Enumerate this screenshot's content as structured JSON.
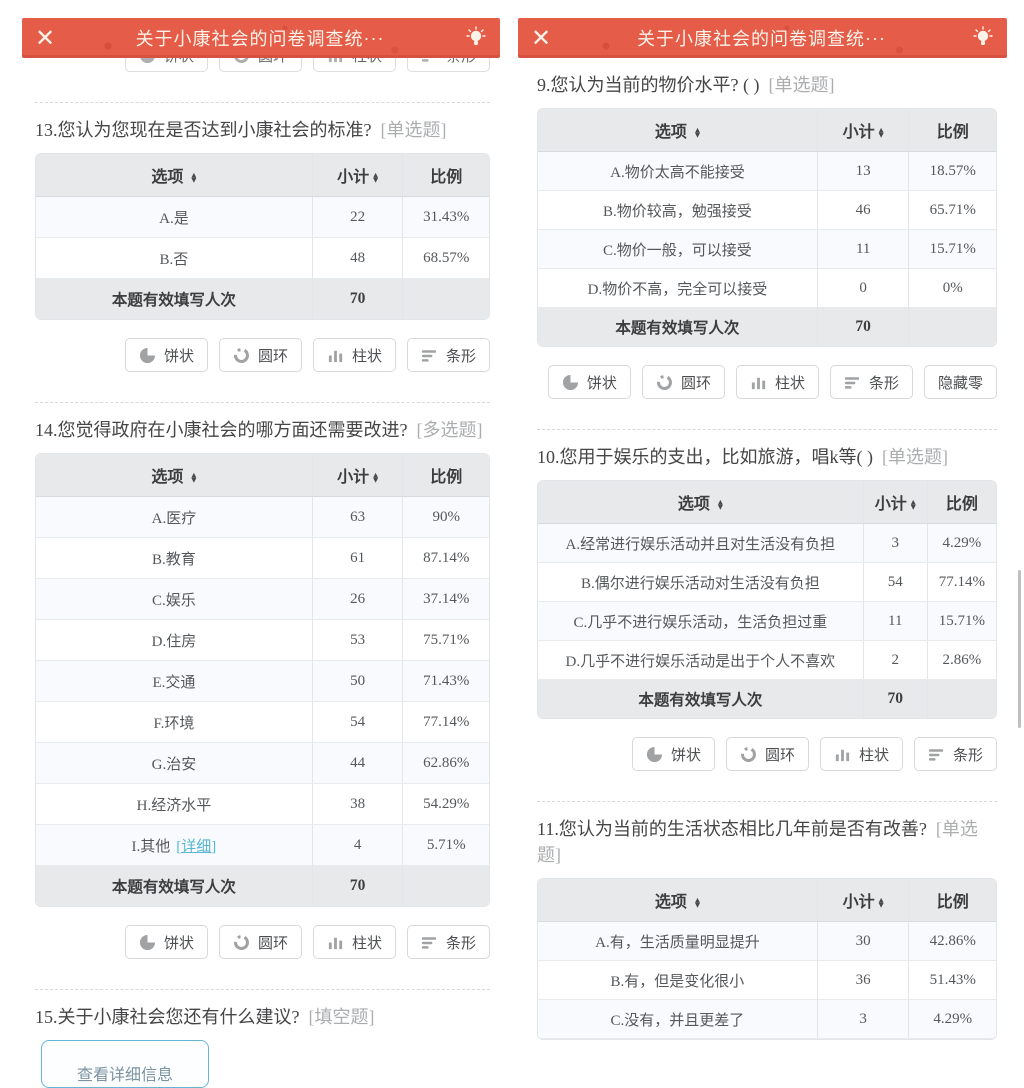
{
  "header": {
    "title": "关于小康社会的问卷调查统···",
    "close_glyph": "✕"
  },
  "columns": {
    "option": "选项",
    "count": "小计",
    "ratio": "比例"
  },
  "total_label": "本题有效填写人次",
  "buttons": {
    "pie": "饼状",
    "ring": "圆环",
    "column": "柱状",
    "bar": "条形",
    "hide_zero": "隐藏零"
  },
  "detail_button": "查看详细信息",
  "accent_colors": {
    "header_red": "#e55c49",
    "link_blue": "#57b7d2"
  },
  "left": {
    "questions": [
      {
        "title": "13.您认为您现在是否达到小康社会的标准?",
        "tag": "[单选题]",
        "total": "70",
        "rows": [
          {
            "option": "A.是",
            "count": "22",
            "ratio": "31.43%"
          },
          {
            "option": "B.否",
            "count": "48",
            "ratio": "68.57%"
          }
        ],
        "buttons": [
          "pie",
          "ring",
          "column",
          "bar"
        ]
      },
      {
        "title": "14.您觉得政府在小康社会的哪方面还需要改进?",
        "tag": "[多选题]",
        "total": "70",
        "rows": [
          {
            "option": "A.医疗",
            "count": "63",
            "ratio": "90%"
          },
          {
            "option": "B.教育",
            "count": "61",
            "ratio": "87.14%"
          },
          {
            "option": "C.娱乐",
            "count": "26",
            "ratio": "37.14%"
          },
          {
            "option": "D.住房",
            "count": "53",
            "ratio": "75.71%"
          },
          {
            "option": "E.交通",
            "count": "50",
            "ratio": "71.43%"
          },
          {
            "option": "F.环境",
            "count": "54",
            "ratio": "77.14%"
          },
          {
            "option": "G.治安",
            "count": "44",
            "ratio": "62.86%"
          },
          {
            "option": "H.经济水平",
            "count": "38",
            "ratio": "54.29%"
          },
          {
            "option": "I.其他",
            "link": "[详细]",
            "count": "4",
            "ratio": "5.71%"
          }
        ],
        "buttons": [
          "pie",
          "ring",
          "column",
          "bar"
        ]
      },
      {
        "title": "15.关于小康社会您还有什么建议?",
        "tag": "[填空题]",
        "detail_button": true
      }
    ]
  },
  "right": {
    "questions": [
      {
        "title": "9.您认为当前的物价水平? ( )",
        "tag": "[单选题]",
        "total": "70",
        "rows": [
          {
            "option": "A.物价太高不能接受",
            "count": "13",
            "ratio": "18.57%"
          },
          {
            "option": "B.物价较高，勉强接受",
            "count": "46",
            "ratio": "65.71%"
          },
          {
            "option": "C.物价一般，可以接受",
            "count": "11",
            "ratio": "15.71%"
          },
          {
            "option": "D.物价不高，完全可以接受",
            "count": "0",
            "ratio": "0%"
          }
        ],
        "buttons": [
          "pie",
          "ring",
          "column",
          "bar",
          "hide_zero"
        ]
      },
      {
        "title": "10.您用于娱乐的支出，比如旅游，唱k等( )",
        "tag": "[单选题]",
        "total": "70",
        "rows": [
          {
            "option": "A.经常进行娱乐活动并且对生活没有负担",
            "count": "3",
            "ratio": "4.29%"
          },
          {
            "option": "B.偶尔进行娱乐活动对生活没有负担",
            "count": "54",
            "ratio": "77.14%"
          },
          {
            "option": "C.几乎不进行娱乐活动，生活负担过重",
            "count": "11",
            "ratio": "15.71%"
          },
          {
            "option": "D.几乎不进行娱乐活动是出于个人不喜欢",
            "count": "2",
            "ratio": "2.86%"
          }
        ],
        "buttons": [
          "pie",
          "ring",
          "column",
          "bar"
        ]
      },
      {
        "title": "11.您认为当前的生活状态相比几年前是否有改善?",
        "tag": "[单选题]",
        "rows": [
          {
            "option": "A.有，生活质量明显提升",
            "count": "30",
            "ratio": "42.86%"
          },
          {
            "option": "B.有，但是变化很小",
            "count": "36",
            "ratio": "51.43%"
          },
          {
            "option": "C.没有，并且更差了",
            "count": "3",
            "ratio": "4.29%"
          }
        ]
      }
    ]
  }
}
